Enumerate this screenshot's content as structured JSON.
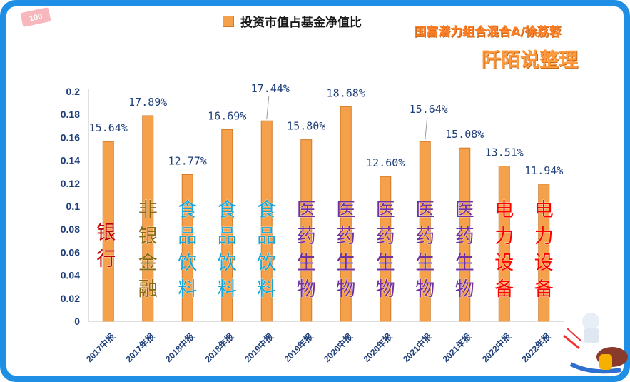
{
  "legend": {
    "label": "投资市值占基金净值比"
  },
  "fund_name": "国富潜力组合混合A/徐荔蓉",
  "author": "阡陌说整理",
  "badge": "100",
  "colors": {
    "bar": "#f5a04a",
    "bar_stroke": "#d07a2a",
    "frame": "#1f8fe6",
    "axis_text": "#1f3f7a"
  },
  "chart_data": {
    "type": "bar",
    "categories": [
      "2017中报",
      "2017年报",
      "2018中报",
      "2018年报",
      "2019中报",
      "2019年报",
      "2020中报",
      "2020年报",
      "2021中报",
      "2021年报",
      "2022中报",
      "2022年报"
    ],
    "series": [
      {
        "name": "投资市值占基金净值比",
        "values": [
          0.1564,
          0.1789,
          0.1277,
          0.1669,
          0.1744,
          0.158,
          0.1868,
          0.126,
          0.1564,
          0.1508,
          0.1351,
          0.1194
        ],
        "labels": [
          "15.64%",
          "17.89%",
          "12.77%",
          "16.69%",
          "17.44%",
          "15.80%",
          "18.68%",
          "12.60%",
          "15.64%",
          "15.08%",
          "13.51%",
          "11.94%"
        ]
      }
    ],
    "industries": [
      {
        "text": "银行",
        "color": "#c00000"
      },
      {
        "text": "非银金融",
        "color": "#8a6a12"
      },
      {
        "text": "食品饮料",
        "color": "#17a6d6"
      },
      {
        "text": "食品饮料",
        "color": "#17a6d6"
      },
      {
        "text": "食品饮料",
        "color": "#17a6d6"
      },
      {
        "text": "医药生物",
        "color": "#7030a0"
      },
      {
        "text": "医药生物",
        "color": "#7030a0"
      },
      {
        "text": "医药生物",
        "color": "#7030a0"
      },
      {
        "text": "医药生物",
        "color": "#7030a0"
      },
      {
        "text": "医药生物",
        "color": "#7030a0"
      },
      {
        "text": "电力设备",
        "color": "#ff0000"
      },
      {
        "text": "电力设备",
        "color": "#ff0000"
      }
    ],
    "yticks": [
      "0",
      "0.02",
      "0.04",
      "0.06",
      "0.08",
      "0.1",
      "0.12",
      "0.14",
      "0.16",
      "0.18",
      "0.2"
    ],
    "ylim": [
      0,
      0.2
    ],
    "grid": false,
    "legend_position": "top"
  }
}
